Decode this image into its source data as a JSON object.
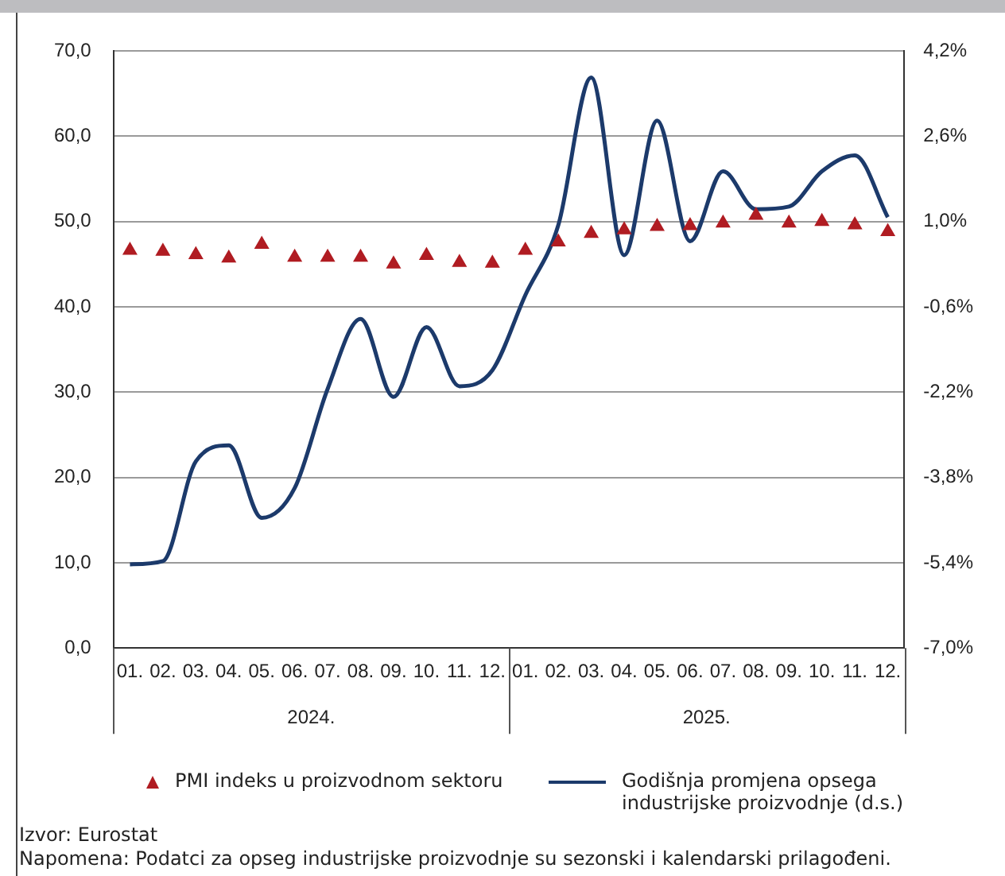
{
  "chart_data": {
    "type": "line",
    "categories": [
      "01.",
      "02.",
      "03.",
      "04.",
      "05.",
      "06.",
      "07.",
      "08.",
      "09.",
      "10.",
      "11.",
      "12.",
      "01.",
      "02.",
      "03.",
      "04.",
      "05.",
      "06.",
      "07.",
      "08.",
      "09.",
      "10.",
      "11.",
      "12."
    ],
    "series": [
      {
        "name": "PMI indeks u proizvodnom sektoru",
        "type": "scatter",
        "marker": "triangle",
        "color": "#b01c22",
        "values": [
          46.6,
          46.5,
          46.1,
          45.7,
          47.3,
          45.8,
          45.8,
          45.8,
          45.0,
          46.0,
          45.2,
          45.1,
          46.6,
          47.6,
          48.6,
          49.0,
          49.4,
          49.5,
          49.8,
          50.7,
          49.8,
          50.0,
          49.6,
          48.8
        ]
      },
      {
        "name": "Godišnja promjena opsega industrijske proizvodnje (d.s.)",
        "axis": "y2",
        "marker": "none",
        "line_style": "solid",
        "color": "#1c3a6b",
        "values": [
          -5.43,
          -5.37,
          -3.5,
          -3.2,
          -4.56,
          -4.0,
          -2.14,
          -0.83,
          -2.29,
          -0.98,
          -2.09,
          -1.79,
          -0.38,
          0.93,
          3.7,
          0.37,
          2.89,
          0.63,
          1.94,
          1.23,
          1.28,
          1.94,
          2.24,
          1.08
        ]
      }
    ],
    "ylim": [
      0,
      70
    ],
    "yticks": [
      {
        "value": 0,
        "label": "0,0"
      },
      {
        "value": 10,
        "label": "10,0"
      },
      {
        "value": 20,
        "label": "20,0"
      },
      {
        "value": 30,
        "label": "30,0"
      },
      {
        "value": 40,
        "label": "40,0"
      },
      {
        "value": 50,
        "label": "50,0"
      },
      {
        "value": 60,
        "label": "60,0"
      },
      {
        "value": 70,
        "label": "70,0"
      }
    ],
    "y2lim": [
      -7.0,
      4.2
    ],
    "y2ticks": [
      {
        "value": -7.0,
        "label": "-7,0%"
      },
      {
        "value": -5.4,
        "label": "-5,4%"
      },
      {
        "value": -3.8,
        "label": "-3,8%"
      },
      {
        "value": -2.2,
        "label": "-2,2%"
      },
      {
        "value": -0.6,
        "label": "-0,6%"
      },
      {
        "value": 1.0,
        "label": "1,0%"
      },
      {
        "value": 2.6,
        "label": "2,6%"
      },
      {
        "value": 4.2,
        "label": "4,2%"
      }
    ],
    "grid": "y",
    "legend": "bottom",
    "annotations": [
      "2024.",
      "2025.",
      "Izvor: Eurostat",
      "Napomena: Podatci za opseg industrijske proizvodnje su sezonski i kalendarski prilagođeni."
    ]
  }
}
